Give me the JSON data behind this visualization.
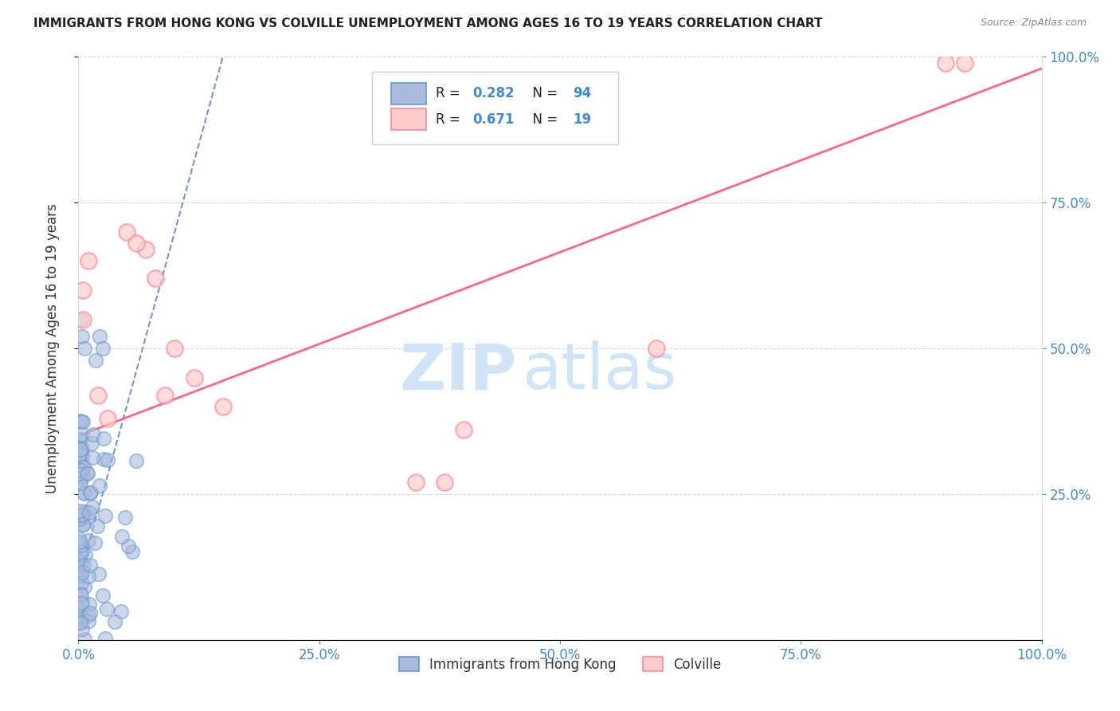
{
  "title": "IMMIGRANTS FROM HONG KONG VS COLVILLE UNEMPLOYMENT AMONG AGES 16 TO 19 YEARS CORRELATION CHART",
  "source": "Source: ZipAtlas.com",
  "ylabel": "Unemployment Among Ages 16 to 19 years",
  "legend1_label": "Immigrants from Hong Kong",
  "legend2_label": "Colville",
  "R1": "0.282",
  "N1": "94",
  "R2": "0.671",
  "N2": "19",
  "blue_color": "#6699CC",
  "blue_fill": "#AABBDD",
  "pink_color": "#FF8899",
  "pink_fill": "#FFCCCC",
  "blue_line_color": "#5577BB",
  "pink_line_color": "#FF5577",
  "watermark_color": "#D0E4F7",
  "background_color": "#FFFFFF",
  "grid_color": "#CCCCCC",
  "tick_color": "#4488CC",
  "pink_scatter_x": [
    0.005,
    0.005,
    0.01,
    0.02,
    0.03,
    0.07,
    0.08,
    0.09,
    0.35,
    0.38,
    0.4,
    0.6,
    0.9,
    0.92,
    0.1,
    0.12,
    0.05,
    0.06,
    0.15
  ],
  "pink_scatter_y": [
    0.6,
    0.55,
    0.65,
    0.42,
    0.38,
    0.67,
    0.62,
    0.42,
    0.27,
    0.27,
    0.36,
    0.5,
    0.99,
    0.99,
    0.5,
    0.45,
    0.7,
    0.68,
    0.4
  ],
  "pink_line_x0": 0.0,
  "pink_line_y0": 0.35,
  "pink_line_x1": 1.0,
  "pink_line_y1": 0.98,
  "blue_line_x0": 0.0,
  "blue_line_y0": 0.1,
  "blue_line_x1": 0.15,
  "blue_line_y1": 1.0,
  "xlim": [
    0,
    1.0
  ],
  "ylim": [
    0,
    1.0
  ],
  "x_ticks": [
    0,
    0.25,
    0.5,
    0.75,
    1.0
  ],
  "x_tick_labels": [
    "0.0%",
    "25.0%",
    "50.0%",
    "75.0%",
    "100.0%"
  ],
  "y_ticks": [
    0.25,
    0.5,
    0.75,
    1.0
  ],
  "y_tick_labels": [
    "25.0%",
    "50.0%",
    "75.0%",
    "100.0%"
  ]
}
